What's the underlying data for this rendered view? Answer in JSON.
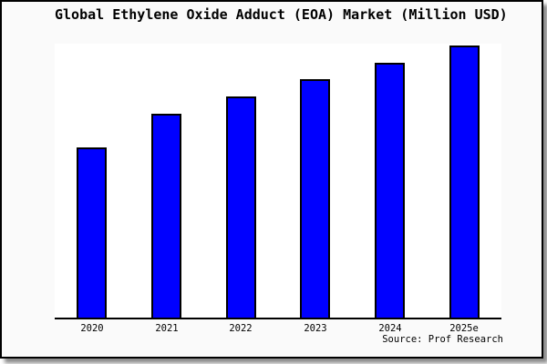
{
  "title": "Global Ethylene Oxide Adduct (EOA) Market (Million USD)",
  "source_note": "Source: Prof Research",
  "colors": {
    "bar_fill": "#0000FF",
    "bar_border": "#000000",
    "figure_background": "#FAFAFA",
    "plot_background": "#FFFFFF",
    "frame_border": "#000000",
    "axis_line": "#000000",
    "text": "#000000"
  },
  "chart_data": {
    "type": "bar",
    "title": "Global Ethylene Oxide Adduct (EOA) Market (Million USD)",
    "categories": [
      "2020",
      "2021",
      "2022",
      "2023",
      "2024",
      "2025e"
    ],
    "values": [
      62.4,
      74.8,
      81.3,
      87.6,
      93.6,
      100
    ],
    "values_note": "relative bar heights, % of 2025e; no y-axis tick labels are shown in the chart",
    "xlabel": "",
    "ylabel": "",
    "ylim": [
      0,
      100
    ],
    "grid": false,
    "legend": false,
    "y_axis_visible": false,
    "bar_color": "#0000FF",
    "bar_outline_color": "#000000",
    "annotations": [
      "Source: Prof Research"
    ]
  }
}
